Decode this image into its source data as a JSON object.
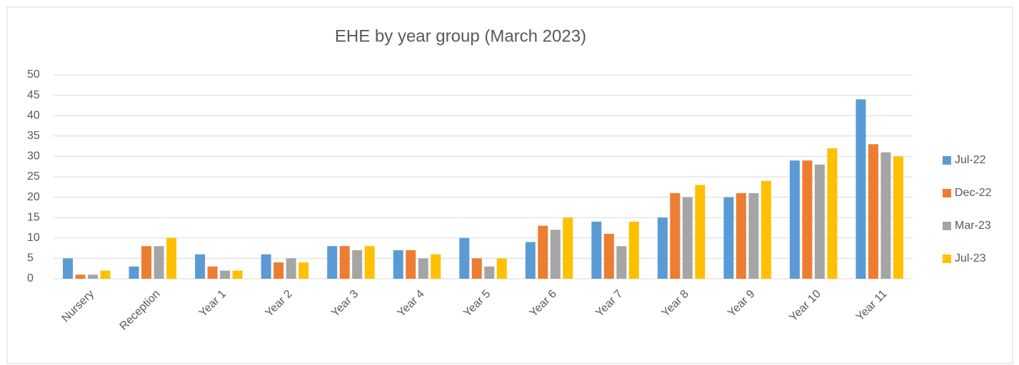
{
  "chart_data": {
    "type": "bar",
    "title": "EHE by year group (March 2023)",
    "categories": [
      "Nursery",
      "Reception",
      "Year 1",
      "Year 2",
      "Year 3",
      "Year 4",
      "Year 5",
      "Year 6",
      "Year 7",
      "Year 8",
      "Year 9",
      "Year 10",
      "Year 11"
    ],
    "series": [
      {
        "name": "Jul-22",
        "color": "#5b9bd5",
        "values": [
          5,
          3,
          6,
          6,
          8,
          7,
          10,
          9,
          14,
          15,
          20,
          29,
          44
        ]
      },
      {
        "name": "Dec-22",
        "color": "#ed7d31",
        "values": [
          1,
          8,
          3,
          4,
          8,
          7,
          5,
          13,
          11,
          21,
          21,
          29,
          33
        ]
      },
      {
        "name": "Mar-23",
        "color": "#a5a5a5",
        "values": [
          1,
          8,
          2,
          5,
          7,
          5,
          3,
          12,
          8,
          20,
          21,
          28,
          31
        ]
      },
      {
        "name": "Jul-23",
        "color": "#ffc000",
        "values": [
          2,
          10,
          2,
          4,
          8,
          6,
          5,
          15,
          14,
          23,
          24,
          32,
          30
        ]
      }
    ],
    "ylim": [
      0,
      50
    ],
    "yticks": [
      0,
      5,
      10,
      15,
      20,
      25,
      30,
      35,
      40,
      45,
      50
    ],
    "grid": true,
    "legend": "right"
  }
}
